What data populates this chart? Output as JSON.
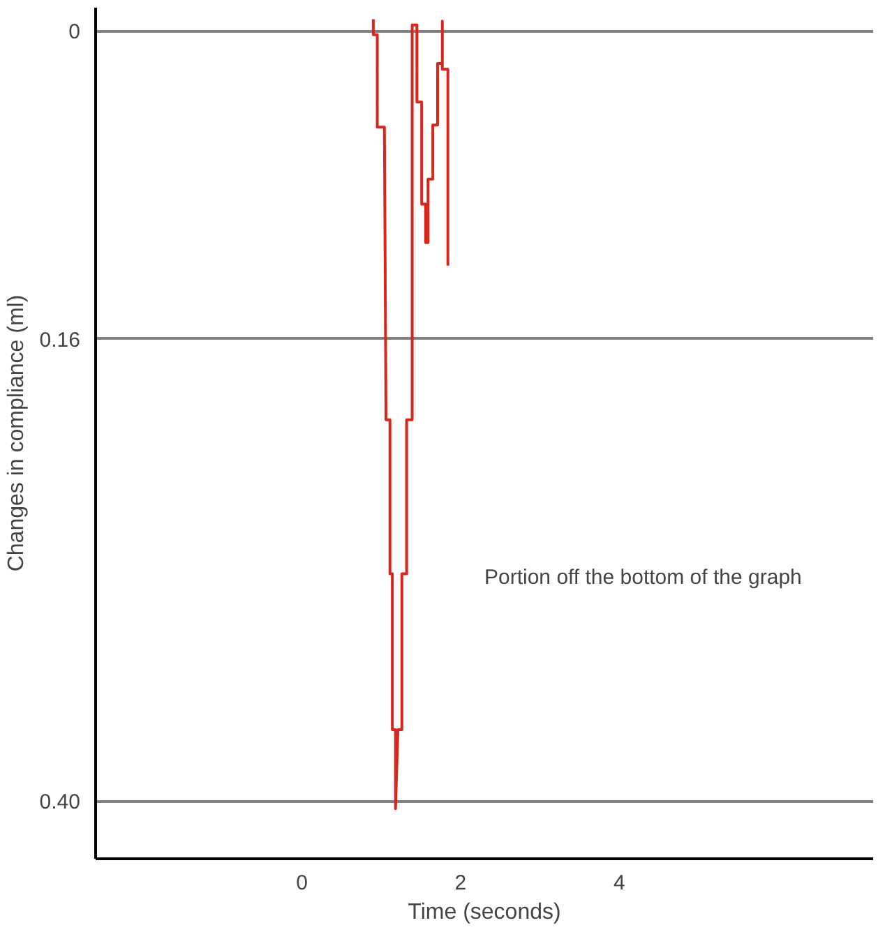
{
  "chart_data": {
    "type": "step",
    "xlabel": "Time (seconds)",
    "ylabel": "Changes in compliance (ml)",
    "x": [
      0.9,
      0.9,
      0.95,
      0.95,
      1.04,
      1.06,
      1.11,
      1.11,
      1.14,
      1.14,
      1.18,
      1.18,
      1.21,
      1.26,
      1.26,
      1.32,
      1.32,
      1.39,
      1.39,
      1.45,
      1.45,
      1.51,
      1.51,
      1.56,
      1.56,
      1.59,
      1.59,
      1.65,
      1.65,
      1.71,
      1.71,
      1.77,
      1.77,
      1.77,
      1.84,
      1.84
    ],
    "series": [
      {
        "color": "#d7261e",
        "values": [
          -0.006,
          0.002,
          0.002,
          0.05,
          0.05,
          0.202,
          0.202,
          0.282,
          0.282,
          0.363,
          0.363,
          0.404,
          0.363,
          0.363,
          0.282,
          0.282,
          0.202,
          0.202,
          -0.003,
          -0.003,
          0.037,
          0.037,
          0.09,
          0.09,
          0.11,
          0.11,
          0.077,
          0.077,
          0.049,
          0.049,
          0.017,
          0.017,
          -0.005,
          0.02,
          0.02,
          0.122
        ]
      }
    ],
    "xlim": [
      -2.6,
      7.2
    ],
    "ylim": [
      0.43,
      -0.012
    ],
    "xticks": [
      0,
      2,
      4
    ],
    "yticks": [
      0,
      {
        "value": 0.16,
        "label": "0.16"
      },
      {
        "value": 0.4,
        "label": "0.40"
      }
    ],
    "grid": "y",
    "annotations": [
      "Portion off the bottom of the graph"
    ]
  }
}
